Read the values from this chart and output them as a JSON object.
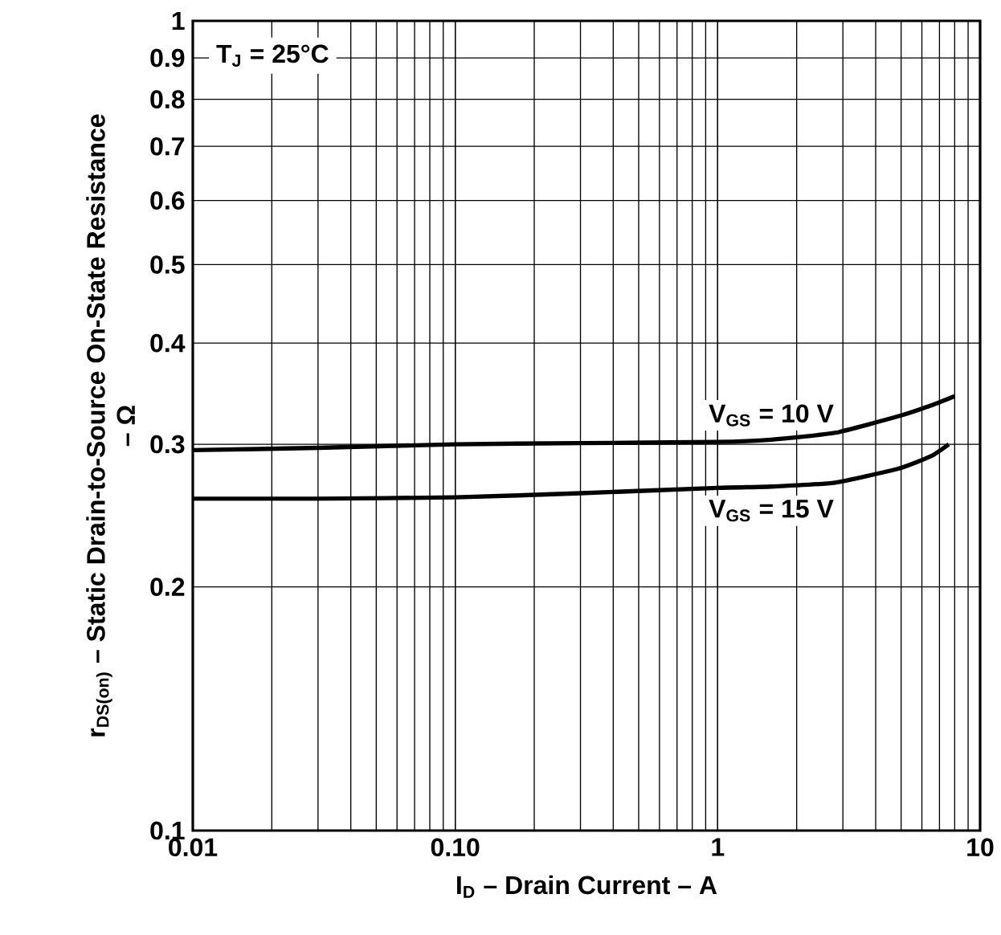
{
  "chart_data": {
    "type": "line",
    "xlabel": "I$_{D}$ – Drain Current – A",
    "ylabel": "r$_{DS(on)}$ – Static Drain-to-Source On-State Resistance – Ω",
    "annotations": [
      "T$_{J}$ = 25°C"
    ],
    "log": "xy",
    "grid": true,
    "marker": "none",
    "line_style": "solid",
    "xlim": [
      0.01,
      10
    ],
    "ylim": [
      0.1,
      1
    ],
    "xticks": [
      0.01,
      {
        "value": 0.1,
        "label": "0.10"
      },
      1,
      10
    ],
    "yticks": [
      0.1,
      0.2,
      0.3,
      0.4,
      0.5,
      0.6,
      0.7,
      0.8,
      0.9,
      1
    ],
    "series": [
      {
        "name": "V$_{GS}$ = 10 V",
        "color": "#000000",
        "x": [
          0.01,
          0.03,
          0.1,
          0.3,
          1,
          1.6,
          2.8,
          4.9,
          6.5,
          8.0
        ],
        "values": [
          0.295,
          0.297,
          0.3,
          0.301,
          0.302,
          0.304,
          0.31,
          0.325,
          0.335,
          0.344
        ]
      },
      {
        "name": "V$_{GS}$ = 15 V",
        "color": "#000000",
        "x": [
          0.01,
          0.03,
          0.1,
          0.3,
          1,
          1.6,
          2.8,
          4.9,
          6.5,
          7.6
        ],
        "values": [
          0.257,
          0.257,
          0.258,
          0.261,
          0.265,
          0.266,
          0.269,
          0.28,
          0.29,
          0.3
        ]
      }
    ]
  }
}
